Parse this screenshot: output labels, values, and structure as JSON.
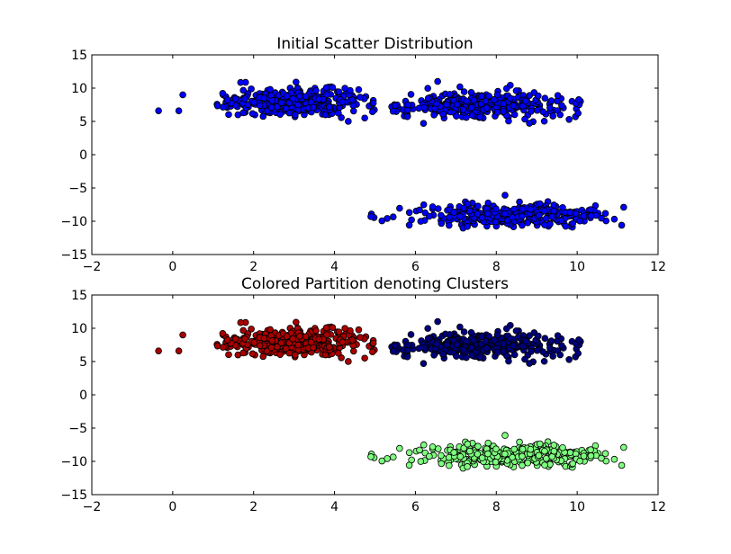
{
  "chart_data": [
    {
      "type": "scatter",
      "title": "Initial Scatter Distribution",
      "xlabel": "",
      "ylabel": "",
      "xlim": [
        -2,
        12
      ],
      "ylim": [
        -15,
        15
      ],
      "xticks": [
        -2,
        0,
        2,
        4,
        6,
        8,
        10,
        12
      ],
      "yticks": [
        -15,
        -10,
        -5,
        0,
        5,
        10,
        15
      ],
      "xtick_labels": [
        "−2",
        "0",
        "2",
        "4",
        "6",
        "8",
        "10",
        "12"
      ],
      "ytick_labels": [
        "−15",
        "−10",
        "−5",
        "0",
        "5",
        "10",
        "15"
      ],
      "grid": false,
      "legend": "none",
      "marker_color": "#0000ff",
      "clusters": [
        {
          "x_range": [
            1.0,
            5.0
          ],
          "y_range": [
            5.0,
            11.0
          ],
          "center": [
            3.0,
            8.0
          ],
          "spread": [
            1.0,
            1.0
          ],
          "approx_count": 330
        },
        {
          "x_range": [
            5.4,
            10.2
          ],
          "y_range": [
            4.5,
            11.0
          ],
          "center": [
            7.6,
            7.4
          ],
          "spread": [
            1.1,
            1.0
          ],
          "approx_count": 330
        },
        {
          "x_range": [
            4.9,
            11.2
          ],
          "y_range": [
            -11.8,
            -6.0
          ],
          "center": [
            8.4,
            -9.1
          ],
          "spread": [
            1.1,
            0.9
          ],
          "approx_count": 330
        }
      ],
      "outliers": [
        {
          "x": -0.35,
          "y": 6.6
        },
        {
          "x": 0.15,
          "y": 6.6
        },
        {
          "x": 0.25,
          "y": 9.0
        },
        {
          "x": 4.9,
          "y": -9.3
        },
        {
          "x": 11.1,
          "y": -10.6
        },
        {
          "x": 11.15,
          "y": -7.9
        },
        {
          "x": 9.8,
          "y": 5.3
        },
        {
          "x": 6.55,
          "y": 11.0
        }
      ]
    },
    {
      "type": "scatter",
      "title": "Colored Partition denoting Clusters",
      "xlabel": "",
      "ylabel": "",
      "xlim": [
        -2,
        12
      ],
      "ylim": [
        -15,
        15
      ],
      "xticks": [
        -2,
        0,
        2,
        4,
        6,
        8,
        10,
        12
      ],
      "yticks": [
        -15,
        -10,
        -5,
        0,
        5,
        10,
        15
      ],
      "xtick_labels": [
        "−2",
        "0",
        "2",
        "4",
        "6",
        "8",
        "10",
        "12"
      ],
      "ytick_labels": [
        "−15",
        "−10",
        "−5",
        "0",
        "5",
        "10",
        "15"
      ],
      "grid": false,
      "legend": "none",
      "clusters": [
        {
          "color": "#aa0000",
          "x_range": [
            1.0,
            5.0
          ],
          "y_range": [
            5.0,
            11.0
          ],
          "center": [
            3.0,
            8.0
          ],
          "spread": [
            1.0,
            1.0
          ],
          "approx_count": 330
        },
        {
          "color": "#00007f",
          "x_range": [
            5.4,
            10.2
          ],
          "y_range": [
            4.5,
            11.0
          ],
          "center": [
            7.6,
            7.4
          ],
          "spread": [
            1.1,
            1.0
          ],
          "approx_count": 330
        },
        {
          "color": "#7fff7f",
          "x_range": [
            4.9,
            11.2
          ],
          "y_range": [
            -11.8,
            -6.0
          ],
          "center": [
            8.4,
            -9.1
          ],
          "spread": [
            1.1,
            0.9
          ],
          "approx_count": 330
        }
      ],
      "outliers": [
        {
          "x": -0.35,
          "y": 6.6,
          "color": "#aa0000"
        },
        {
          "x": 0.15,
          "y": 6.6,
          "color": "#aa0000"
        },
        {
          "x": 0.25,
          "y": 9.0,
          "color": "#aa0000"
        },
        {
          "x": 4.9,
          "y": -9.3,
          "color": "#7fff7f"
        },
        {
          "x": 11.1,
          "y": -10.6,
          "color": "#7fff7f"
        },
        {
          "x": 11.15,
          "y": -7.9,
          "color": "#7fff7f"
        },
        {
          "x": 9.8,
          "y": 5.3,
          "color": "#00007f"
        },
        {
          "x": 6.55,
          "y": 11.0,
          "color": "#00007f"
        }
      ]
    }
  ]
}
